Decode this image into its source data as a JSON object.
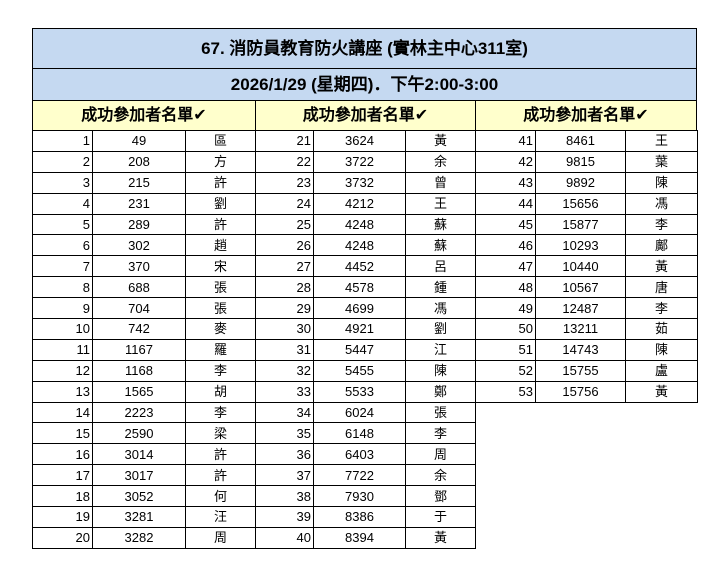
{
  "title": "67. 消防員教育防火講座 (實林主中心311室)",
  "date": "2026/1/29 (星期四)．下午2:00-3:00",
  "column_header": "成功參加者名單✔",
  "colors": {
    "title_bg": "#c5d9f1",
    "header_bg": "#ffffcc"
  },
  "groups": [
    [
      [
        1,
        "49",
        "區"
      ],
      [
        2,
        "208",
        "方"
      ],
      [
        3,
        "215",
        "許"
      ],
      [
        4,
        "231",
        "劉"
      ],
      [
        5,
        "289",
        "許"
      ],
      [
        6,
        "302",
        "趙"
      ],
      [
        7,
        "370",
        "宋"
      ],
      [
        8,
        "688",
        "張"
      ],
      [
        9,
        "704",
        "張"
      ],
      [
        10,
        "742",
        "麥"
      ],
      [
        11,
        "1167",
        "羅"
      ],
      [
        12,
        "1168",
        "李"
      ],
      [
        13,
        "1565",
        "胡"
      ],
      [
        14,
        "2223",
        "李"
      ],
      [
        15,
        "2590",
        "梁"
      ],
      [
        16,
        "3014",
        "許"
      ],
      [
        17,
        "3017",
        "許"
      ],
      [
        18,
        "3052",
        "何"
      ],
      [
        19,
        "3281",
        "汪"
      ],
      [
        20,
        "3282",
        "周"
      ]
    ],
    [
      [
        21,
        "3624",
        "黃"
      ],
      [
        22,
        "3722",
        "余"
      ],
      [
        23,
        "3732",
        "曾"
      ],
      [
        24,
        "4212",
        "王"
      ],
      [
        25,
        "4248",
        "蘇"
      ],
      [
        26,
        "4248",
        "蘇"
      ],
      [
        27,
        "4452",
        "呂"
      ],
      [
        28,
        "4578",
        "鍾"
      ],
      [
        29,
        "4699",
        "馮"
      ],
      [
        30,
        "4921",
        "劉"
      ],
      [
        31,
        "5447",
        "江"
      ],
      [
        32,
        "5455",
        "陳"
      ],
      [
        33,
        "5533",
        "鄭"
      ],
      [
        34,
        "6024",
        "張"
      ],
      [
        35,
        "6148",
        "李"
      ],
      [
        36,
        "6403",
        "周"
      ],
      [
        37,
        "7722",
        "余"
      ],
      [
        38,
        "7930",
        "鄧"
      ],
      [
        39,
        "8386",
        "于"
      ],
      [
        40,
        "8394",
        "黃"
      ]
    ],
    [
      [
        41,
        "8461",
        "王"
      ],
      [
        42,
        "9815",
        "葉"
      ],
      [
        43,
        "9892",
        "陳"
      ],
      [
        44,
        "15656",
        "馮"
      ],
      [
        45,
        "15877",
        "李"
      ],
      [
        46,
        "10293",
        "鄺"
      ],
      [
        47,
        "10440",
        "黃"
      ],
      [
        48,
        "10567",
        "唐"
      ],
      [
        49,
        "12487",
        "李"
      ],
      [
        50,
        "13211",
        "茹"
      ],
      [
        51,
        "14743",
        "陳"
      ],
      [
        52,
        "15755",
        "盧"
      ],
      [
        53,
        "15756",
        "黃"
      ]
    ]
  ]
}
